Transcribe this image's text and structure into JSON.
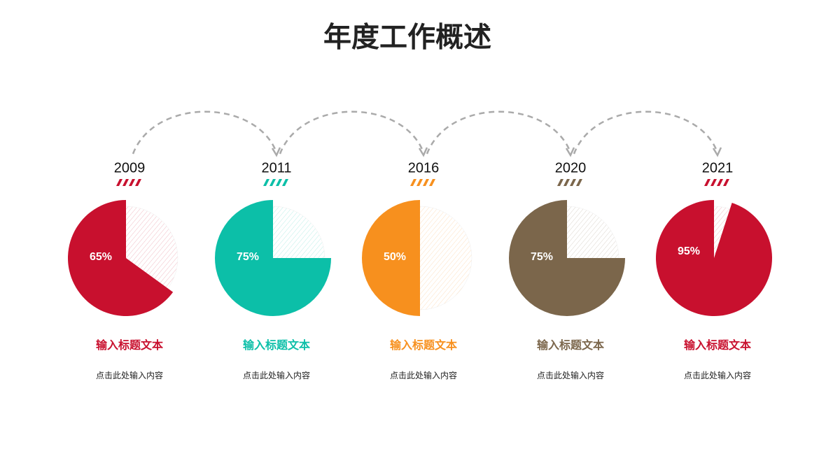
{
  "title": "年度工作概述",
  "chart_data": [
    {
      "type": "pie",
      "title": "2009",
      "values": [
        65
      ],
      "value_labels": [
        "65%"
      ],
      "color": "#c8102e",
      "label": "输入标题文本",
      "note": "点击此处输入内容"
    },
    {
      "type": "pie",
      "title": "2011",
      "values": [
        75
      ],
      "value_labels": [
        "75%"
      ],
      "color": "#0cbfa8",
      "label": "输入标题文本",
      "note": "点击此处输入内容"
    },
    {
      "type": "pie",
      "title": "2016",
      "values": [
        50
      ],
      "value_labels": [
        "50%"
      ],
      "color": "#f7901e",
      "label": "输入标题文本",
      "note": "点击此处输入内容"
    },
    {
      "type": "pie",
      "title": "2020",
      "values": [
        75
      ],
      "value_labels": [
        "75%"
      ],
      "color": "#7b664b",
      "label": "输入标题文本",
      "note": "点击此处输入内容"
    },
    {
      "type": "pie",
      "title": "2021",
      "values": [
        95
      ],
      "value_labels": [
        "95%"
      ],
      "color": "#c8102e",
      "label": "输入标题文本",
      "note": "点击此处输入内容"
    }
  ]
}
